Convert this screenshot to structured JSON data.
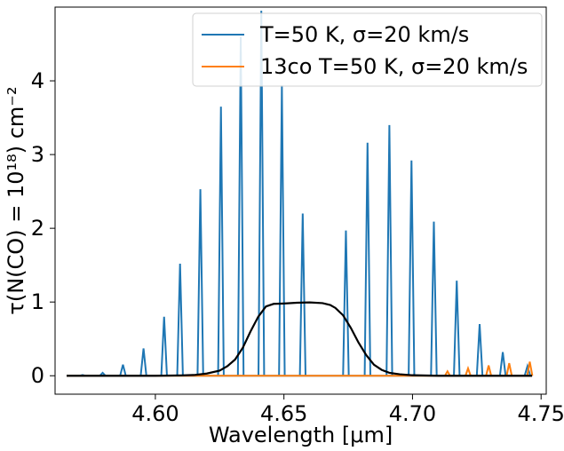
{
  "chart_data": {
    "type": "line",
    "xlabel": "Wavelength [μm]",
    "ylabel": "τ(N(CO) = 10¹⁸) cm⁻²",
    "xlim": [
      4.561,
      4.752
    ],
    "ylim": [
      -0.25,
      5.0
    ],
    "xticks": [
      4.6,
      4.65,
      4.7,
      4.75
    ],
    "xtick_labels": [
      "4.60",
      "4.65",
      "4.70",
      "4.75"
    ],
    "yticks": [
      0,
      1,
      2,
      3,
      4
    ],
    "ytick_labels": [
      "0",
      "1",
      "2",
      "3",
      "4"
    ],
    "grid": false,
    "legend_position": "top-right",
    "series": [
      {
        "name": "T=50 K, σ=20 km/s",
        "color": "#1f77b4",
        "kind": "lines",
        "line_width": 0.0011,
        "lines": [
          {
            "x": 4.5717,
            "y": 0.01
          },
          {
            "x": 4.5795,
            "y": 0.04
          },
          {
            "x": 4.5874,
            "y": 0.15
          },
          {
            "x": 4.5954,
            "y": 0.37
          },
          {
            "x": 4.6034,
            "y": 0.8
          },
          {
            "x": 4.6096,
            "y": 1.52
          },
          {
            "x": 4.6175,
            "y": 2.53
          },
          {
            "x": 4.6255,
            "y": 3.65
          },
          {
            "x": 4.6332,
            "y": 4.6
          },
          {
            "x": 4.6412,
            "y": 4.95
          },
          {
            "x": 4.6492,
            "y": 3.94
          },
          {
            "x": 4.6573,
            "y": 2.2
          },
          {
            "x": 4.6741,
            "y": 1.97
          },
          {
            "x": 4.6825,
            "y": 3.16
          },
          {
            "x": 4.691,
            "y": 3.4
          },
          {
            "x": 4.6996,
            "y": 2.92
          },
          {
            "x": 4.7083,
            "y": 2.09
          },
          {
            "x": 4.7172,
            "y": 1.29
          },
          {
            "x": 4.7261,
            "y": 0.7
          },
          {
            "x": 4.7351,
            "y": 0.32
          },
          {
            "x": 4.7447,
            "y": 0.13
          }
        ]
      },
      {
        "name": "13co T=50 K, σ=20 km/s",
        "color": "#ff7f0e",
        "kind": "lines",
        "line_width": 0.001,
        "lines": [
          {
            "x": 4.7136,
            "y": 0.06
          },
          {
            "x": 4.7216,
            "y": 0.1
          },
          {
            "x": 4.7296,
            "y": 0.14
          },
          {
            "x": 4.7376,
            "y": 0.17
          },
          {
            "x": 4.7456,
            "y": 0.19
          }
        ]
      },
      {
        "name": "",
        "color": "#000000",
        "kind": "curve",
        "points": [
          [
            4.5655,
            0.0
          ],
          [
            4.6,
            0.0
          ],
          [
            4.61,
            0.005
          ],
          [
            4.615,
            0.01
          ],
          [
            4.62,
            0.03
          ],
          [
            4.625,
            0.07
          ],
          [
            4.628,
            0.13
          ],
          [
            4.631,
            0.22
          ],
          [
            4.634,
            0.38
          ],
          [
            4.637,
            0.6
          ],
          [
            4.64,
            0.8
          ],
          [
            4.643,
            0.94
          ],
          [
            4.646,
            0.975
          ],
          [
            4.65,
            0.98
          ],
          [
            4.655,
            0.99
          ],
          [
            4.66,
            0.995
          ],
          [
            4.665,
            0.985
          ],
          [
            4.668,
            0.96
          ],
          [
            4.67,
            0.92
          ],
          [
            4.673,
            0.82
          ],
          [
            4.676,
            0.65
          ],
          [
            4.679,
            0.45
          ],
          [
            4.682,
            0.28
          ],
          [
            4.685,
            0.15
          ],
          [
            4.688,
            0.08
          ],
          [
            4.691,
            0.04
          ],
          [
            4.695,
            0.02
          ],
          [
            4.7,
            0.007
          ],
          [
            4.71,
            0.0
          ],
          [
            4.7465,
            0.0
          ]
        ]
      }
    ]
  }
}
